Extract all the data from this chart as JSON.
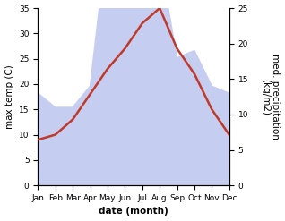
{
  "months": [
    "Jan",
    "Feb",
    "Mar",
    "Apr",
    "May",
    "Jun",
    "Jul",
    "Aug",
    "Sep",
    "Oct",
    "Nov",
    "Dec"
  ],
  "x": [
    0,
    1,
    2,
    3,
    4,
    5,
    6,
    7,
    8,
    9,
    10,
    11
  ],
  "temperature": [
    9,
    10,
    13,
    18,
    23,
    27,
    32,
    35,
    27,
    22,
    15,
    10
  ],
  "precipitation": [
    13,
    11,
    11,
    14,
    35,
    32,
    26,
    32,
    18,
    19,
    14,
    13
  ],
  "temp_color": "#c0392b",
  "precip_fill_color": "#c5cef0",
  "precip_edge_color": "#aab4e8",
  "temp_ylim": [
    0,
    35
  ],
  "precip_ylim": [
    0,
    25
  ],
  "temp_yticks": [
    0,
    5,
    10,
    15,
    20,
    25,
    30,
    35
  ],
  "precip_yticks": [
    0,
    5,
    10,
    15,
    20,
    25
  ],
  "xlabel": "date (month)",
  "ylabel_left": "max temp (C)",
  "ylabel_right": "med. precipitation\n(kg/m2)",
  "background_color": "#ffffff",
  "temp_linewidth": 1.8,
  "label_fontsize": 7.5,
  "tick_fontsize": 6.5
}
